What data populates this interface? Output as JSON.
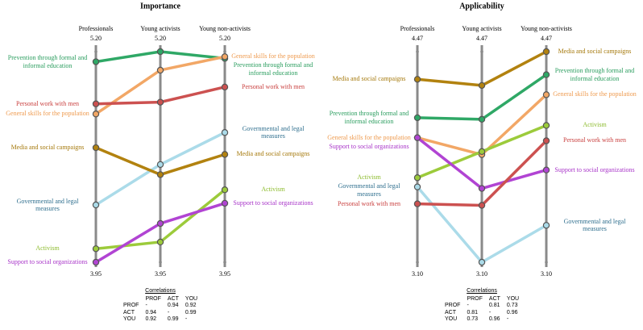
{
  "chart_data": [
    {
      "type": "slope",
      "title": "Importance",
      "categories": [
        "Professionals",
        "Young activists",
        "Young non-activists"
      ],
      "ylim": [
        3.95,
        5.2
      ],
      "yticks": [
        3.95,
        {
          "value": 5.2,
          "label": "5.20"
        }
      ],
      "series": [
        {
          "name": "Prevention through formal and informal education",
          "color": "#2fa866",
          "label_color": "#2a9d5e",
          "values": [
            5.14,
            5.2,
            5.16
          ]
        },
        {
          "name": "General skills for the population",
          "color": "#f2a766",
          "label_color": "#ee9a4e",
          "values": [
            4.83,
            5.09,
            5.17
          ]
        },
        {
          "name": "Personal work with men",
          "color": "#cc5150",
          "label_color": "#c9403f",
          "values": [
            4.89,
            4.9,
            4.99
          ]
        },
        {
          "name": "Governmental and legal measures",
          "color": "#abdbe9",
          "label_color": "#2f6f8e",
          "values": [
            4.29,
            4.53,
            4.72
          ]
        },
        {
          "name": "Media and social campaigns",
          "color": "#b2820f",
          "label_color": "#a5790c",
          "values": [
            4.63,
            4.47,
            4.59
          ]
        },
        {
          "name": "Activism",
          "color": "#9ccb3b",
          "label_color": "#8cbb2c",
          "values": [
            4.03,
            4.07,
            4.38
          ]
        },
        {
          "name": "Support to social organizations",
          "color": "#b144d3",
          "label_color": "#a834c8",
          "values": [
            3.95,
            4.18,
            4.3
          ]
        }
      ],
      "correlations": {
        "title": "Correlations",
        "columns": [
          "PROF",
          "ACT",
          "YOU"
        ],
        "rows": [
          [
            "PROF",
            "-",
            "0.94",
            "0.92"
          ],
          [
            "ACT",
            "0.94",
            "-",
            "0.99"
          ],
          [
            "YOU",
            "0.92",
            "0.99",
            "-"
          ]
        ]
      }
    },
    {
      "type": "slope",
      "title": "Applicability",
      "categories": [
        "Professionals",
        "Young activists",
        "Young non-activists"
      ],
      "ylim": [
        3.1,
        4.47
      ],
      "yticks": [
        {
          "value": 3.1,
          "label": "3.10"
        },
        4.47
      ],
      "series": [
        {
          "name": "Media and social campaigns",
          "color": "#b2820f",
          "label_color": "#a5790c",
          "values": [
            4.29,
            4.25,
            4.47
          ]
        },
        {
          "name": "Prevention through formal and informal education",
          "color": "#2fa866",
          "label_color": "#2a9d5e",
          "values": [
            4.04,
            4.03,
            4.32
          ]
        },
        {
          "name": "General skills for the population",
          "color": "#f2a766",
          "label_color": "#ee9a4e",
          "values": [
            3.91,
            3.8,
            4.19
          ]
        },
        {
          "name": "Activism",
          "color": "#9ccb3b",
          "label_color": "#8cbb2c",
          "values": [
            3.65,
            3.82,
            3.99
          ]
        },
        {
          "name": "Support to social organizations",
          "color": "#b144d3",
          "label_color": "#a834c8",
          "values": [
            3.91,
            3.58,
            3.7
          ]
        },
        {
          "name": "Governmental and legal measures",
          "color": "#abdbe9",
          "label_color": "#2f6f8e",
          "values": [
            3.59,
            3.1,
            3.34
          ]
        },
        {
          "name": "Personal work with men",
          "color": "#cc5150",
          "label_color": "#c9403f",
          "values": [
            3.48,
            3.47,
            3.89
          ]
        }
      ],
      "correlations": {
        "title": "Correlations",
        "columns": [
          "PROF",
          "ACT",
          "YOU"
        ],
        "rows": [
          [
            "PROF",
            "-",
            "0.81",
            "0.73"
          ],
          [
            "ACT",
            "0.81",
            "-",
            "0.96"
          ],
          [
            "YOU",
            "0.73",
            "0.96",
            "-"
          ]
        ]
      }
    }
  ]
}
